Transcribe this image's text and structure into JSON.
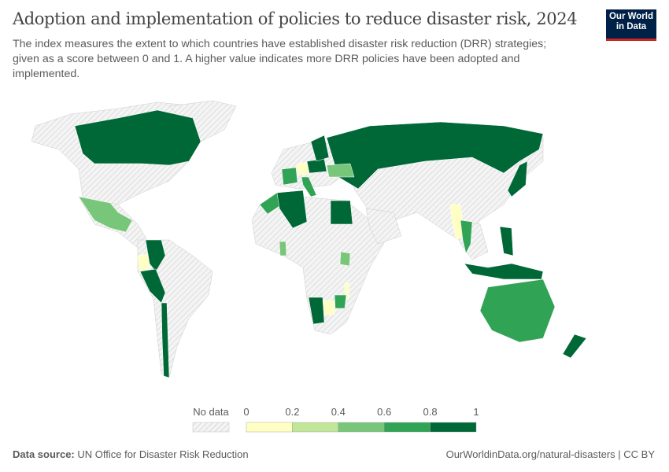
{
  "header": {
    "title": "Adoption and implementation of policies to reduce disaster risk, 2024",
    "subtitle": "The index measures the extent to which countries have established disaster risk reduction (DRR) strategies; given as a score between 0 and 1. A higher value indicates more DRR policies have been adopted and implemented.",
    "logo": "Our World in Data"
  },
  "chart_data": {
    "type": "choropleth-map",
    "year": "2024",
    "legend": {
      "no_data_label": "No data",
      "ticks": [
        "0",
        "0.2",
        "0.4",
        "0.6",
        "0.8",
        "1"
      ],
      "bins": [
        {
          "range": [
            0,
            0.2
          ],
          "color": "#ffffc4"
        },
        {
          "range": [
            0.2,
            0.4
          ],
          "color": "#c2e699"
        },
        {
          "range": [
            0.4,
            0.6
          ],
          "color": "#78c679"
        },
        {
          "range": [
            0.6,
            0.8
          ],
          "color": "#31a354"
        },
        {
          "range": [
            0.8,
            1
          ],
          "color": "#006837"
        }
      ],
      "no_data_color": "#e8e8e8"
    },
    "countries": [
      {
        "name": "Canada",
        "bin": "0.8-1"
      },
      {
        "name": "Russia",
        "bin": "0.8-1"
      },
      {
        "name": "Mexico",
        "bin": "0.4-0.6"
      },
      {
        "name": "Colombia",
        "bin": "0.8-1"
      },
      {
        "name": "Ecuador",
        "bin": "0-0.2"
      },
      {
        "name": "Peru",
        "bin": "0.8-1"
      },
      {
        "name": "Chile",
        "bin": "0.8-1"
      },
      {
        "name": "Morocco",
        "bin": "0.6-0.8"
      },
      {
        "name": "Algeria",
        "bin": "0.8-1"
      },
      {
        "name": "Egypt",
        "bin": "0.8-1"
      },
      {
        "name": "Ghana",
        "bin": "0.4-0.6"
      },
      {
        "name": "Kenya",
        "bin": "0.4-0.6"
      },
      {
        "name": "Malawi",
        "bin": "0-0.2"
      },
      {
        "name": "Namibia",
        "bin": "0.8-1"
      },
      {
        "name": "Botswana",
        "bin": "0-0.2"
      },
      {
        "name": "Zimbabwe",
        "bin": "0.6-0.8"
      },
      {
        "name": "France",
        "bin": "0.6-0.8"
      },
      {
        "name": "Italy",
        "bin": "0.6-0.8"
      },
      {
        "name": "Poland",
        "bin": "0.8-1"
      },
      {
        "name": "Ukraine",
        "bin": "0.4-0.6"
      },
      {
        "name": "Germany",
        "bin": "0-0.2"
      },
      {
        "name": "Finland",
        "bin": "0.8-1"
      },
      {
        "name": "Myanmar",
        "bin": "0-0.2"
      },
      {
        "name": "Thailand",
        "bin": "0.6-0.8"
      },
      {
        "name": "Philippines",
        "bin": "0.8-1"
      },
      {
        "name": "Indonesia",
        "bin": "0.8-1"
      },
      {
        "name": "Japan",
        "bin": "0.8-1"
      },
      {
        "name": "Australia",
        "bin": "0.6-0.8"
      },
      {
        "name": "New Zealand",
        "bin": "0.8-1"
      }
    ]
  },
  "footer": {
    "source_label": "Data source:",
    "source": "UN Office for Disaster Risk Reduction",
    "link": "OurWorldinData.org/natural-disasters | CC BY"
  }
}
